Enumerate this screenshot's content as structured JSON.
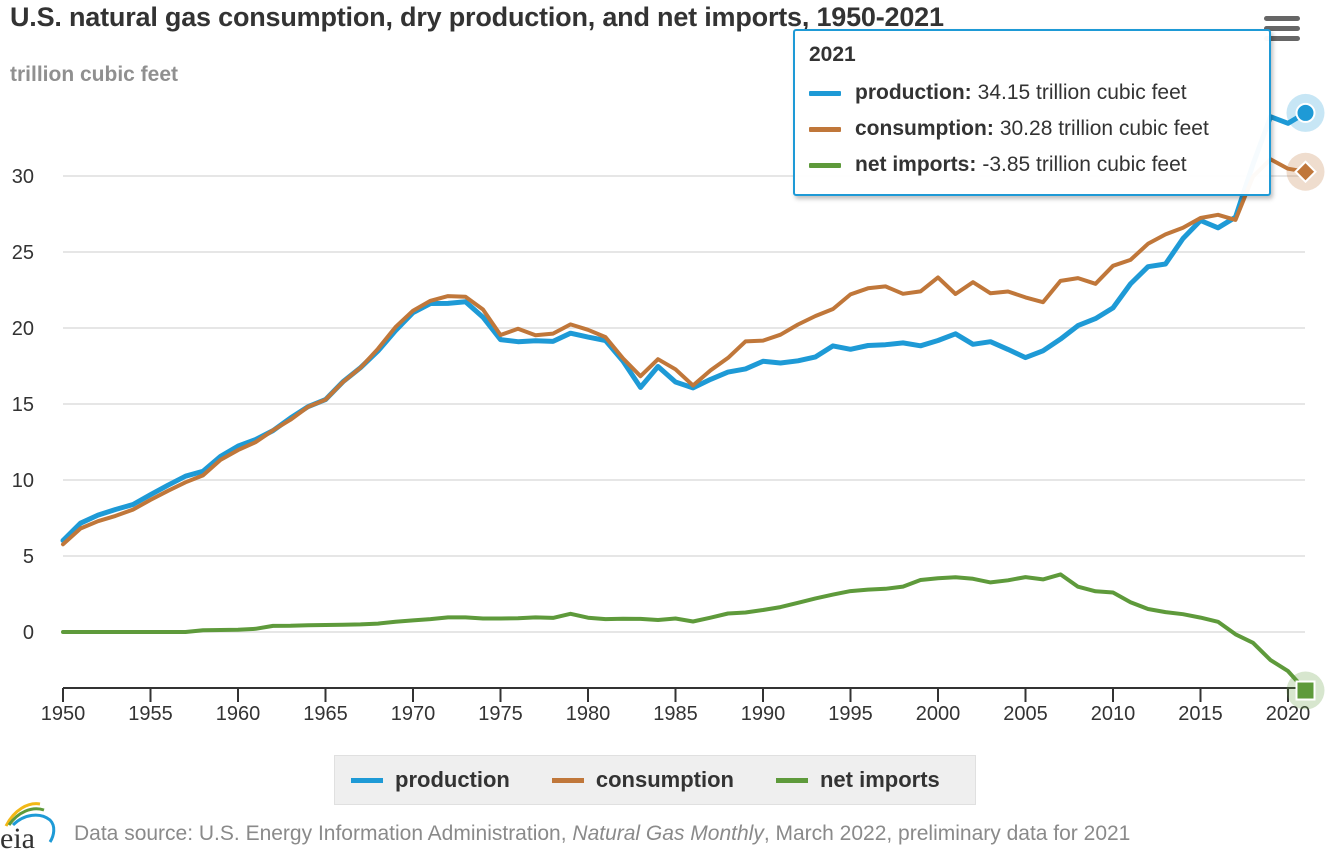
{
  "header": {
    "title": "U.S. natural gas consumption, dry production, and net imports, 1950-2021",
    "subtitle": "trillion cubic feet",
    "menu_icon": "hamburger-menu-icon"
  },
  "tooltip": {
    "year": "2021",
    "rows": [
      {
        "name": "production:",
        "value": "34.15 trillion cubic feet",
        "color": "#1e9ad6"
      },
      {
        "name": "consumption:",
        "value": "30.28 trillion cubic feet",
        "color": "#c0773a"
      },
      {
        "name": "net imports:",
        "value": "-3.85 trillion cubic feet",
        "color": "#5e9a3b"
      }
    ]
  },
  "legend": {
    "items": [
      {
        "label": "production",
        "color": "#1e9ad6"
      },
      {
        "label": "consumption",
        "color": "#c0773a"
      },
      {
        "label": "net imports",
        "color": "#5e9a3b"
      }
    ]
  },
  "footer": {
    "logo_text": "eia",
    "source_prefix": "Data source: U.S. Energy Information Administration, ",
    "source_italic": "Natural Gas Monthly",
    "source_suffix": ", March 2022, preliminary data for 2021"
  },
  "chart_data": {
    "type": "line",
    "title": "U.S. natural gas consumption, dry production, and net imports, 1950-2021",
    "subtitle": "trillion cubic feet",
    "xlabel": "",
    "ylabel": "trillion cubic feet",
    "xlim": [
      1950,
      2021
    ],
    "ylim": [
      -3.7,
      34.2
    ],
    "grid": true,
    "legend_position": "bottom-center",
    "x_ticks": [
      "1950",
      "1955",
      "1960",
      "1965",
      "1970",
      "1975",
      "1980",
      "1985",
      "1990",
      "1995",
      "2000",
      "2005",
      "2010",
      "2015",
      "2020"
    ],
    "y_ticks": [
      "0",
      "5",
      "10",
      "15",
      "20",
      "25",
      "30"
    ],
    "x": [
      1950,
      1951,
      1952,
      1953,
      1954,
      1955,
      1956,
      1957,
      1958,
      1959,
      1960,
      1961,
      1962,
      1963,
      1964,
      1965,
      1966,
      1967,
      1968,
      1969,
      1970,
      1971,
      1972,
      1973,
      1974,
      1975,
      1976,
      1977,
      1978,
      1979,
      1980,
      1981,
      1982,
      1983,
      1984,
      1985,
      1986,
      1987,
      1988,
      1989,
      1990,
      1991,
      1992,
      1993,
      1994,
      1995,
      1996,
      1997,
      1998,
      1999,
      2000,
      2001,
      2002,
      2003,
      2004,
      2005,
      2006,
      2007,
      2008,
      2009,
      2010,
      2011,
      2012,
      2013,
      2014,
      2015,
      2016,
      2017,
      2018,
      2019,
      2020,
      2021
    ],
    "series": [
      {
        "name": "production",
        "color": "#1e9ad6",
        "values": [
          6.02,
          7.16,
          7.69,
          8.06,
          8.39,
          9.03,
          9.66,
          10.25,
          10.57,
          11.55,
          12.23,
          12.66,
          13.25,
          14.08,
          14.82,
          15.29,
          16.47,
          17.39,
          18.49,
          19.83,
          21.01,
          21.61,
          21.62,
          21.73,
          20.71,
          19.24,
          19.1,
          19.16,
          19.12,
          19.66,
          19.4,
          19.18,
          17.82,
          16.09,
          17.47,
          16.45,
          16.06,
          16.62,
          17.1,
          17.31,
          17.81,
          17.7,
          17.84,
          18.1,
          18.82,
          18.6,
          18.85,
          18.9,
          19.02,
          18.83,
          19.18,
          19.62,
          18.93,
          19.1,
          18.59,
          18.05,
          18.5,
          19.27,
          20.16,
          20.62,
          21.32,
          22.9,
          24.03,
          24.21,
          25.89,
          27.07,
          26.59,
          27.29,
          30.77,
          33.9,
          33.47,
          34.15
        ]
      },
      {
        "name": "consumption",
        "color": "#c0773a",
        "values": [
          5.77,
          6.81,
          7.29,
          7.64,
          8.05,
          8.69,
          9.29,
          9.85,
          10.3,
          11.32,
          11.97,
          12.49,
          13.27,
          13.97,
          14.81,
          15.28,
          16.45,
          17.39,
          18.63,
          20.06,
          21.14,
          21.79,
          22.1,
          22.05,
          21.22,
          19.54,
          19.95,
          19.52,
          19.63,
          20.24,
          19.88,
          19.4,
          18.0,
          16.83,
          17.95,
          17.28,
          16.22,
          17.21,
          18.03,
          19.12,
          19.17,
          19.56,
          20.23,
          20.79,
          21.25,
          22.21,
          22.61,
          22.74,
          22.25,
          22.41,
          23.33,
          22.24,
          23.01,
          22.28,
          22.4,
          22.01,
          21.7,
          23.1,
          23.28,
          22.91,
          24.09,
          24.48,
          25.54,
          26.16,
          26.59,
          27.24,
          27.45,
          27.11,
          29.96,
          31.1,
          30.48,
          30.28
        ]
      },
      {
        "name": "net imports",
        "color": "#5e9a3b",
        "values": [
          0.0,
          0.0,
          0.0,
          0.0,
          0.0,
          0.0,
          0.0,
          0.0,
          0.12,
          0.13,
          0.15,
          0.21,
          0.4,
          0.41,
          0.44,
          0.46,
          0.48,
          0.5,
          0.55,
          0.68,
          0.76,
          0.85,
          0.96,
          0.96,
          0.89,
          0.89,
          0.9,
          0.96,
          0.93,
          1.2,
          0.94,
          0.85,
          0.87,
          0.86,
          0.79,
          0.89,
          0.69,
          0.94,
          1.22,
          1.28,
          1.45,
          1.64,
          1.92,
          2.21,
          2.46,
          2.69,
          2.79,
          2.84,
          2.99,
          3.42,
          3.54,
          3.6,
          3.5,
          3.26,
          3.4,
          3.61,
          3.46,
          3.79,
          2.98,
          2.68,
          2.6,
          1.96,
          1.51,
          1.31,
          1.17,
          0.95,
          0.67,
          -0.15,
          -0.71,
          -1.85,
          -2.57,
          -3.85
        ]
      }
    ]
  }
}
